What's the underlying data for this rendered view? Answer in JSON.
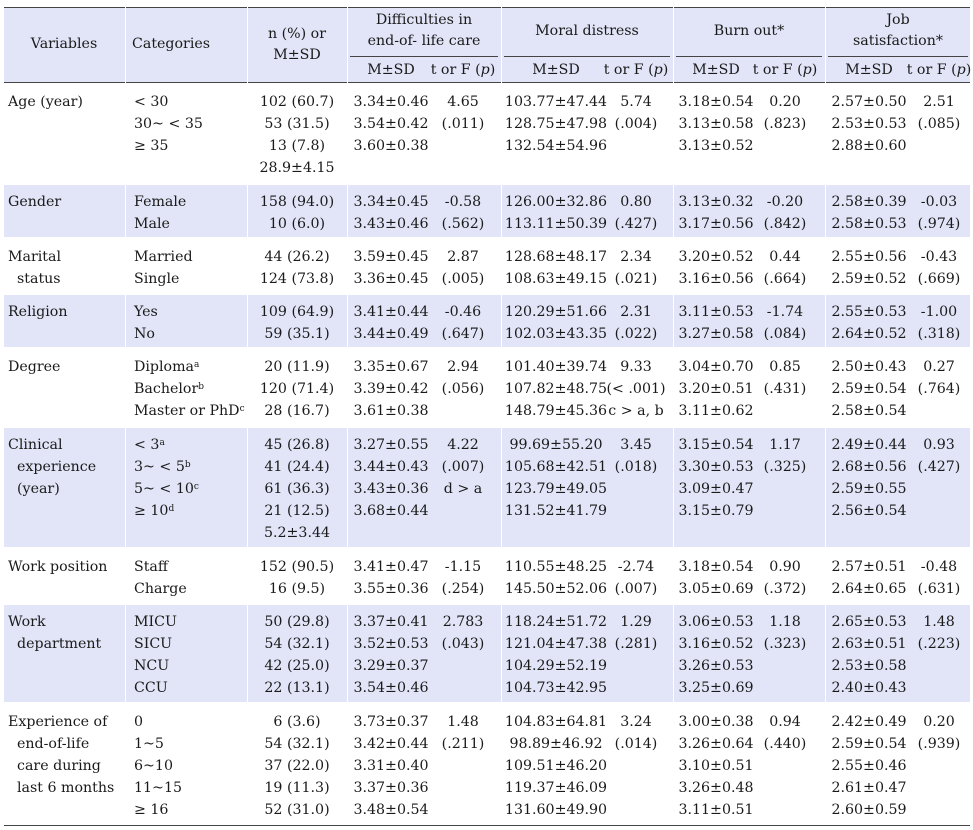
{
  "headers": {
    "variables": "Variables",
    "categories": "Categories",
    "n_pct": [
      "n (%) or",
      "M±SD"
    ],
    "groups": [
      {
        "name": [
          "Difficulties in",
          "end-of- life care"
        ],
        "sub1": "M±SD",
        "sub2": "t or F (p)"
      },
      {
        "name": [
          "Moral distress"
        ],
        "sub1": "M±SD",
        "sub2": "t or F (p)"
      },
      {
        "name": [
          "Burn out*"
        ],
        "sub1": "M±SD",
        "sub2": "t or F (p)"
      },
      {
        "name": [
          "Job",
          "satisfaction*"
        ],
        "sub1": "M±SD",
        "sub2": "t or F (p)"
      }
    ]
  },
  "rows": [
    {
      "variable": [
        "Age (year)"
      ],
      "categories": [
        [
          "< 30",
          ""
        ],
        [
          "30~ < 35",
          ""
        ],
        [
          "≥ 35",
          ""
        ]
      ],
      "n": [
        "102 (60.7)",
        "53 (31.5)",
        "13 (7.8)",
        "28.9±4.15"
      ],
      "diff": {
        "m": [
          "3.34±0.46",
          "3.54±0.42",
          "3.60±0.38"
        ],
        "t": [
          "4.65",
          "(.011)"
        ]
      },
      "moral": {
        "m": [
          "103.77±47.44",
          "128.75±47.98",
          "132.54±54.96"
        ],
        "t": [
          "5.74",
          "(.004)"
        ]
      },
      "burn": {
        "m": [
          "3.18±0.54",
          "3.13±0.58",
          "3.13±0.52"
        ],
        "t": [
          "0.20",
          "(.823)"
        ]
      },
      "job": {
        "m": [
          "2.57±0.50",
          "2.53±0.53",
          "2.88±0.60"
        ],
        "t": [
          "2.51",
          "(.085)"
        ]
      }
    },
    {
      "variable": [
        "Gender"
      ],
      "categories": [
        [
          "Female",
          ""
        ],
        [
          "Male",
          ""
        ]
      ],
      "n": [
        "158 (94.0)",
        "10 (6.0)"
      ],
      "diff": {
        "m": [
          "3.34±0.45",
          "3.43±0.46"
        ],
        "t": [
          "-0.58",
          "(.562)"
        ]
      },
      "moral": {
        "m": [
          "126.00±32.86",
          "113.11±50.39"
        ],
        "t": [
          "0.80",
          "(.427)"
        ]
      },
      "burn": {
        "m": [
          "3.13±0.32",
          "3.17±0.56"
        ],
        "t": [
          "-0.20",
          "(.842)"
        ]
      },
      "job": {
        "m": [
          "2.58±0.39",
          "2.58±0.53"
        ],
        "t": [
          "-0.03",
          "(.974)"
        ]
      }
    },
    {
      "variable": [
        "Marital",
        "  status"
      ],
      "categories": [
        [
          "Married",
          ""
        ],
        [
          "Single",
          ""
        ]
      ],
      "n": [
        "44 (26.2)",
        "124 (73.8)"
      ],
      "diff": {
        "m": [
          "3.59±0.45",
          "3.36±0.45"
        ],
        "t": [
          "2.87",
          "(.005)"
        ]
      },
      "moral": {
        "m": [
          "128.68±48.17",
          "108.63±49.15"
        ],
        "t": [
          "2.34",
          "(.021)"
        ]
      },
      "burn": {
        "m": [
          "3.20±0.52",
          "3.16±0.56"
        ],
        "t": [
          "0.44",
          "(.664)"
        ]
      },
      "job": {
        "m": [
          "2.55±0.56",
          "2.59±0.52"
        ],
        "t": [
          "-0.43",
          "(.669)"
        ]
      }
    },
    {
      "variable": [
        "Religion"
      ],
      "categories": [
        [
          "Yes",
          ""
        ],
        [
          "No",
          ""
        ]
      ],
      "n": [
        "109 (64.9)",
        "59 (35.1)"
      ],
      "diff": {
        "m": [
          "3.41±0.44",
          "3.44±0.49"
        ],
        "t": [
          "-0.46",
          "(.647)"
        ]
      },
      "moral": {
        "m": [
          "120.29±51.66",
          "102.03±43.35"
        ],
        "t": [
          "2.31",
          "(.022)"
        ]
      },
      "burn": {
        "m": [
          "3.11±0.53",
          "3.27±0.58"
        ],
        "t": [
          "-1.74",
          "(.084)"
        ]
      },
      "job": {
        "m": [
          "2.55±0.53",
          "2.64±0.52"
        ],
        "t": [
          "-1.00",
          "(.318)"
        ]
      }
    },
    {
      "variable": [
        "Degree"
      ],
      "categories": [
        [
          "Diploma",
          "a"
        ],
        [
          "Bachelor",
          "b"
        ],
        [
          "Master or PhD",
          "c"
        ]
      ],
      "n": [
        "20 (11.9)",
        "120 (71.4)",
        "28 (16.7)"
      ],
      "diff": {
        "m": [
          "3.35±0.67",
          "3.39±0.42",
          "3.61±0.38"
        ],
        "t": [
          "2.94",
          "(.056)"
        ]
      },
      "moral": {
        "m": [
          "101.40±39.74",
          "107.82±48.75",
          "148.79±45.36"
        ],
        "t": [
          "9.33",
          "(< .001)",
          "c > a, b"
        ]
      },
      "burn": {
        "m": [
          "3.04±0.70",
          "3.20±0.51",
          "3.11±0.62"
        ],
        "t": [
          "0.85",
          "(.431)"
        ]
      },
      "job": {
        "m": [
          "2.50±0.43",
          "2.59±0.54",
          "2.58±0.54"
        ],
        "t": [
          "0.27",
          "(.764)"
        ]
      }
    },
    {
      "variable": [
        "Clinical",
        "  experience",
        "  (year)"
      ],
      "categories": [
        [
          "< 3",
          "a"
        ],
        [
          "3~ < 5",
          "b"
        ],
        [
          "5~ < 10",
          "c"
        ],
        [
          "≥ 10",
          "d"
        ]
      ],
      "n": [
        "45 (26.8)",
        "41 (24.4)",
        "61 (36.3)",
        "21 (12.5)",
        "5.2±3.44"
      ],
      "diff": {
        "m": [
          "3.27±0.55",
          "3.44±0.43",
          "3.43±0.36",
          "3.68±0.44"
        ],
        "t": [
          "4.22",
          "(.007)",
          "d > a"
        ]
      },
      "moral": {
        "m": [
          "99.69±55.20",
          "105.68±42.51",
          "123.79±49.05",
          "131.52±41.79"
        ],
        "t": [
          "3.45",
          "(.018)"
        ]
      },
      "burn": {
        "m": [
          "3.15±0.54",
          "3.30±0.53",
          "3.09±0.47",
          "3.15±0.79"
        ],
        "t": [
          "1.17",
          "(.325)"
        ]
      },
      "job": {
        "m": [
          "2.49±0.44",
          "2.68±0.56",
          "2.59±0.55",
          "2.56±0.54"
        ],
        "t": [
          "0.93",
          "(.427)"
        ]
      }
    },
    {
      "variable": [
        "Work position"
      ],
      "categories": [
        [
          "Staff",
          ""
        ],
        [
          "Charge",
          ""
        ]
      ],
      "n": [
        "152 (90.5)",
        "16 (9.5)"
      ],
      "diff": {
        "m": [
          "3.41±0.47",
          "3.55±0.36"
        ],
        "t": [
          "-1.15",
          "(.254)"
        ]
      },
      "moral": {
        "m": [
          "110.55±48.25",
          "145.50±52.06"
        ],
        "t": [
          "-2.74",
          "(.007)"
        ]
      },
      "burn": {
        "m": [
          "3.18±0.54",
          "3.05±0.69"
        ],
        "t": [
          "0.90",
          "(.372)"
        ]
      },
      "job": {
        "m": [
          "2.57±0.51",
          "2.64±0.65"
        ],
        "t": [
          "-0.48",
          "(.631)"
        ]
      }
    },
    {
      "variable": [
        "Work",
        "  department"
      ],
      "categories": [
        [
          "MICU",
          ""
        ],
        [
          "SICU",
          ""
        ],
        [
          "NCU",
          ""
        ],
        [
          "CCU",
          ""
        ]
      ],
      "n": [
        "50 (29.8)",
        "54 (32.1)",
        "42 (25.0)",
        "22 (13.1)"
      ],
      "diff": {
        "m": [
          "3.37±0.41",
          "3.52±0.53",
          "3.29±0.37",
          "3.54±0.46"
        ],
        "t": [
          "2.783",
          "(.043)"
        ]
      },
      "moral": {
        "m": [
          "118.24±51.72",
          "121.04±47.38",
          "104.29±52.19",
          "104.73±42.95"
        ],
        "t": [
          "1.29",
          "(.281)"
        ]
      },
      "burn": {
        "m": [
          "3.06±0.53",
          "3.16±0.52",
          "3.26±0.53",
          "3.25±0.69"
        ],
        "t": [
          "1.18",
          "(.323)"
        ]
      },
      "job": {
        "m": [
          "2.65±0.53",
          "2.63±0.51",
          "2.53±0.58",
          "2.40±0.43"
        ],
        "t": [
          "1.48",
          "(.223)"
        ]
      }
    },
    {
      "variable": [
        "Experience of",
        "  end-of-life",
        "  care during",
        "  last 6 months"
      ],
      "categories": [
        [
          "0",
          ""
        ],
        [
          "1~5",
          ""
        ],
        [
          "6~10",
          ""
        ],
        [
          "11~15",
          ""
        ],
        [
          "≥ 16",
          ""
        ]
      ],
      "n": [
        "6 (3.6)",
        "54 (32.1)",
        "37 (22.0)",
        "19 (11.3)",
        "52 (31.0)"
      ],
      "diff": {
        "m": [
          "3.73±0.37",
          "3.42±0.44",
          "3.31±0.40",
          "3.37±0.36",
          "3.48±0.54"
        ],
        "t": [
          "1.48",
          "(.211)"
        ]
      },
      "moral": {
        "m": [
          "104.83±64.81",
          "98.89±46.92",
          "109.51±46.20",
          "119.37±46.09",
          "131.60±49.90"
        ],
        "t": [
          "3.24",
          "(.014)"
        ]
      },
      "burn": {
        "m": [
          "3.00±0.38",
          "3.26±0.64",
          "3.10±0.51",
          "3.26±0.48",
          "3.11±0.51"
        ],
        "t": [
          "0.94",
          "(.440)"
        ]
      },
      "job": {
        "m": [
          "2.42±0.49",
          "2.59±0.54",
          "2.55±0.46",
          "2.61±0.47",
          "2.60±0.59"
        ],
        "t": [
          "0.20",
          "(.939)"
        ]
      }
    }
  ]
}
